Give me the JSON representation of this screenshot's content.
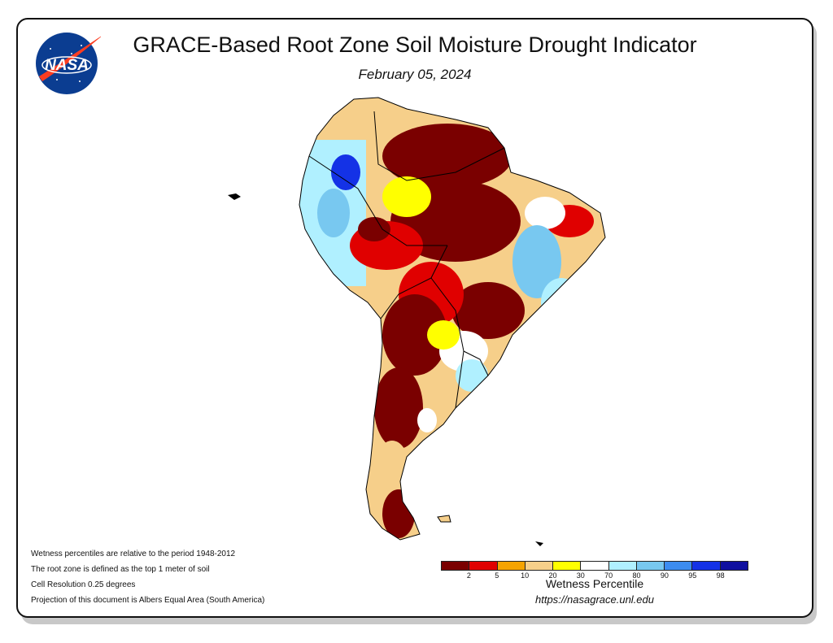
{
  "title": "GRACE-Based Root Zone Soil Moisture Drought Indicator",
  "date": "February 05, 2024",
  "logo": {
    "text": "NASA",
    "icon": "nasa-meatball-logo"
  },
  "notes": [
    "Wetness percentiles are relative to the period 1948-2012",
    "The root zone is defined as the top 1 meter of soil",
    "Cell Resolution 0.25 degrees",
    "Projection of this document is Albers Equal Area (South America)"
  ],
  "legend": {
    "title": "Wetness Percentile",
    "colors": [
      "#7a0000",
      "#e00000",
      "#f5a300",
      "#f6cf8a",
      "#ffff00",
      "#ffffff",
      "#b0f0ff",
      "#78c8f0",
      "#3c8cf0",
      "#1432e6",
      "#1010a0"
    ],
    "ticks": [
      "2",
      "5",
      "10",
      "20",
      "30",
      "70",
      "80",
      "90",
      "95",
      "98"
    ]
  },
  "url": "https://nasagrace.unl.edu"
}
